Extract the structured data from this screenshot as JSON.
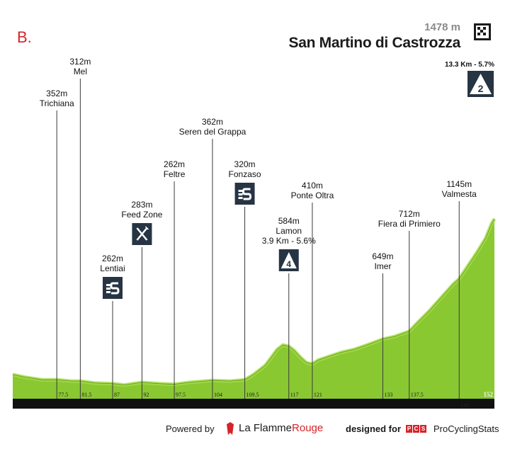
{
  "stage_letter": "B.",
  "finish": {
    "altitude": "1478 m",
    "name": "San Martino di Castrozza",
    "climb": {
      "label": "13.3 Km - 5.7%",
      "category": "2"
    }
  },
  "footer": {
    "powered_by": "Powered by",
    "brand_part1": "La Flamme",
    "brand_part2": "Rouge",
    "designed_for": "designed for",
    "pcs_letters": [
      "P",
      "C",
      "S"
    ],
    "pcs_name": "ProCyclingStats"
  },
  "colors": {
    "profile_fill": "#8ac832",
    "profile_light": "#a6dc4a",
    "axis_bar": "#111111",
    "accent_red": "#d6232a"
  },
  "chart_data": {
    "type": "area",
    "x_unit": "km",
    "xlim": [
      70,
      152
    ],
    "total_distance_label": "152",
    "profile": [
      [
        70,
        290
      ],
      [
        72,
        270
      ],
      [
        75,
        250
      ],
      [
        77.5,
        250
      ],
      [
        80,
        240
      ],
      [
        81.5,
        240
      ],
      [
        84,
        225
      ],
      [
        87,
        220
      ],
      [
        89,
        210
      ],
      [
        92,
        230
      ],
      [
        95,
        220
      ],
      [
        97.5,
        215
      ],
      [
        100,
        230
      ],
      [
        104,
        245
      ],
      [
        107,
        240
      ],
      [
        109.5,
        250
      ],
      [
        111,
        290
      ],
      [
        113,
        360
      ],
      [
        115,
        480
      ],
      [
        116,
        515
      ],
      [
        117,
        505
      ],
      [
        118,
        470
      ],
      [
        119,
        420
      ],
      [
        120,
        380
      ],
      [
        121,
        370
      ],
      [
        122,
        400
      ],
      [
        124,
        430
      ],
      [
        126,
        460
      ],
      [
        128,
        480
      ],
      [
        130,
        510
      ],
      [
        133,
        560
      ],
      [
        135,
        580
      ],
      [
        137.5,
        620
      ],
      [
        139,
        690
      ],
      [
        141,
        780
      ],
      [
        143,
        880
      ],
      [
        145,
        980
      ],
      [
        146,
        1020
      ],
      [
        147.5,
        1120
      ],
      [
        149,
        1220
      ],
      [
        150.5,
        1330
      ],
      [
        151.5,
        1440
      ],
      [
        152,
        1478
      ]
    ],
    "waypoints": [
      {
        "km": 77.5,
        "altitude": "352m",
        "name": "Trichiana",
        "extra": "",
        "icon": "",
        "km_label": "77.5"
      },
      {
        "km": 81.5,
        "altitude": "312m",
        "name": "Mel",
        "extra": "",
        "icon": "",
        "km_label": "81.5"
      },
      {
        "km": 87,
        "altitude": "262m",
        "name": "Lentiai",
        "extra": "",
        "icon": "sprint",
        "km_label": "87"
      },
      {
        "km": 92,
        "altitude": "283m",
        "name": "Feed Zone",
        "extra": "",
        "icon": "feed",
        "km_label": "92"
      },
      {
        "km": 97.5,
        "altitude": "262m",
        "name": "Feltre",
        "extra": "",
        "icon": "",
        "km_label": "97.5"
      },
      {
        "km": 104,
        "altitude": "362m",
        "name": "Seren del Grappa",
        "extra": "",
        "icon": "",
        "km_label": "104"
      },
      {
        "km": 109.5,
        "altitude": "320m",
        "name": "Fonzaso",
        "extra": "",
        "icon": "sprint",
        "km_label": "109.5"
      },
      {
        "km": 117,
        "altitude": "584m",
        "name": "Lamon",
        "extra": "3.9 Km - 5.6%",
        "icon": "cat4",
        "km_label": "117"
      },
      {
        "km": 121,
        "altitude": "410m",
        "name": "Ponte Oltra",
        "extra": "",
        "icon": "",
        "km_label": "121"
      },
      {
        "km": 133,
        "altitude": "649m",
        "name": "Imer",
        "extra": "",
        "icon": "",
        "km_label": "133"
      },
      {
        "km": 137.5,
        "altitude": "712m",
        "name": "Fiera di Primiero",
        "extra": "",
        "icon": "",
        "km_label": "137.5"
      },
      {
        "km": 146,
        "altitude": "1145m",
        "name": "Valmesta",
        "extra": "",
        "icon": "",
        "km_label": "146"
      }
    ]
  }
}
